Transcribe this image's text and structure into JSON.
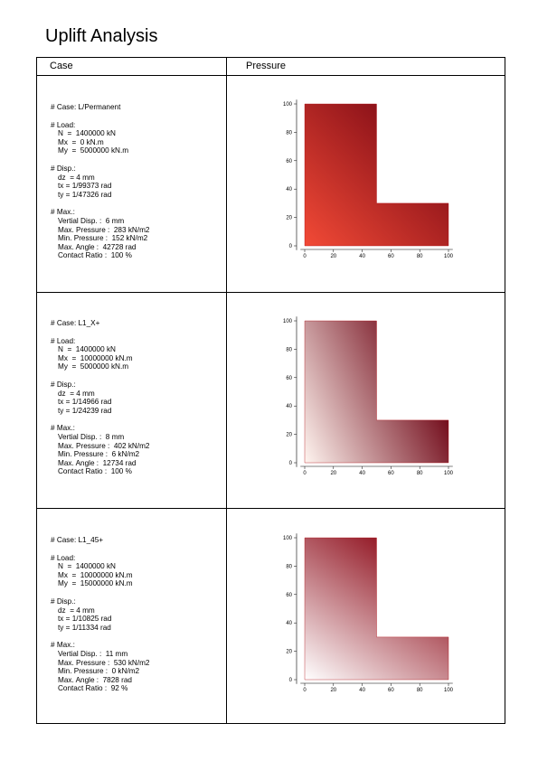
{
  "title": "Uplift Analysis",
  "columns": {
    "case": "Case",
    "pressure": "Pressure"
  },
  "axes": {
    "x_ticks": [
      "0",
      "20",
      "40",
      "60",
      "80",
      "100"
    ],
    "y_ticks": [
      "0",
      "20",
      "40",
      "60",
      "80",
      "100"
    ]
  },
  "cases": [
    {
      "case_line": "# Case: L/Permanent",
      "load_header": "# Load:",
      "load": [
        "N  =  1400000 kN",
        "Mx  =  0 kN.m",
        "My  =  5000000 kN.m"
      ],
      "disp_header": "# Disp.:",
      "disp": [
        "dz  = 4 mm",
        "tx = 1/99373 rad",
        "ty = 1/47326 rad"
      ],
      "max_header": "# Max.:",
      "max": [
        "Vertial Disp. :  6 mm",
        "Max. Pressure :  283 kN/m2",
        "Min. Pressure :  152 kN/m2",
        "Max. Angle :  42728 rad",
        "Contact Ratio :  100 %"
      ],
      "gradient": {
        "from": "#f24a36",
        "to": "#6b0010",
        "x1": 0,
        "y1": 1,
        "x2": 1,
        "y2": 0
      }
    },
    {
      "case_line": "# Case: L1_X+",
      "load_header": "# Load:",
      "load": [
        "N  =  1400000 kN",
        "Mx  =  10000000 kN.m",
        "My  =  5000000 kN.m"
      ],
      "disp_header": "# Disp.:",
      "disp": [
        "dz  = 4 mm",
        "tx = 1/14966 rad",
        "ty = 1/24239 rad"
      ],
      "max_header": "# Max.:",
      "max": [
        "Vertial Disp. :  8 mm",
        "Max. Pressure :  402 kN/m2",
        "Min. Pressure :  6 kN/m2",
        "Max. Angle :  12734 rad",
        "Contact Ratio :  100 %"
      ],
      "gradient": {
        "from": "#fff5f0",
        "to": "#6b0010",
        "x1": 0,
        "y1": 1,
        "x2": 1,
        "y2": 0.55
      }
    },
    {
      "case_line": "# Case: L1_45+",
      "load_header": "# Load:",
      "load": [
        "N  =  1400000 kN",
        "Mx  =  10000000 kN.m",
        "My  =  15000000 kN.m"
      ],
      "disp_header": "# Disp.:",
      "disp": [
        "dz  = 4 mm",
        "tx = 1/10825 rad",
        "ty = 1/11334 rad"
      ],
      "max_header": "# Max.:",
      "max": [
        "Vertial Disp. :  11 mm",
        "Max. Pressure :  530 kN/m2",
        "Min. Pressure :  0 kN/m2",
        "Max. Angle :  7828 rad",
        "Contact Ratio :  92 %"
      ],
      "gradient": {
        "from": "#ffffff",
        "to": "#8a0513",
        "x1": 0,
        "y1": 1,
        "x2": 0.7,
        "y2": 0
      }
    }
  ]
}
